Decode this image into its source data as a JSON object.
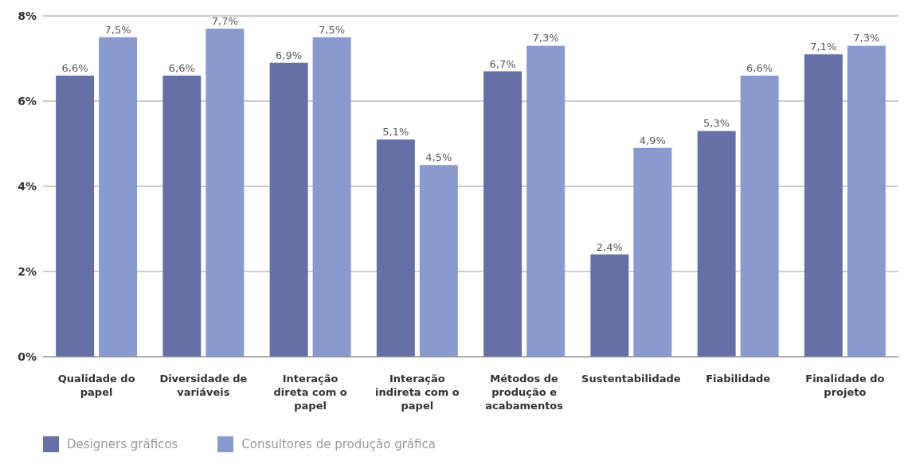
{
  "chart_data": {
    "type": "bar",
    "categories": [
      "Qualidade do papel",
      "Diversidade de variáveis",
      "Interação direta com o papel",
      "Interação indireta com o papel",
      "Métodos de produção e acabamentos",
      "Sustentabilidade",
      "Fiabilidade",
      "Finalidade do projeto"
    ],
    "series": [
      {
        "name": "Designers gráficos",
        "color": "#6670a6",
        "values": [
          6.6,
          6.6,
          6.9,
          5.1,
          6.7,
          2.4,
          5.3,
          7.1
        ],
        "value_labels": [
          "6,6%",
          "6,6%",
          "6,9%",
          "5,1%",
          "6,7%",
          "2,4%",
          "5,3%",
          "7,1%"
        ]
      },
      {
        "name": "Consultores de produção gráfica",
        "color": "#8a9acf",
        "values": [
          7.5,
          7.7,
          7.5,
          4.5,
          7.3,
          4.9,
          6.6,
          7.3
        ],
        "value_labels": [
          "7,5%",
          "7,7%",
          "7,5%",
          "4,5%",
          "7,3%",
          "4,9%",
          "6,6%",
          "7,3%"
        ]
      }
    ],
    "ylim": [
      0,
      8
    ],
    "yticks": [
      {
        "value": 0,
        "label": "0%"
      },
      {
        "value": 2,
        "label": "2%"
      },
      {
        "value": 4,
        "label": "4%"
      },
      {
        "value": 6,
        "label": "6%"
      },
      {
        "value": 8,
        "label": "8%"
      }
    ],
    "grid": "y",
    "legend": "bottom"
  }
}
